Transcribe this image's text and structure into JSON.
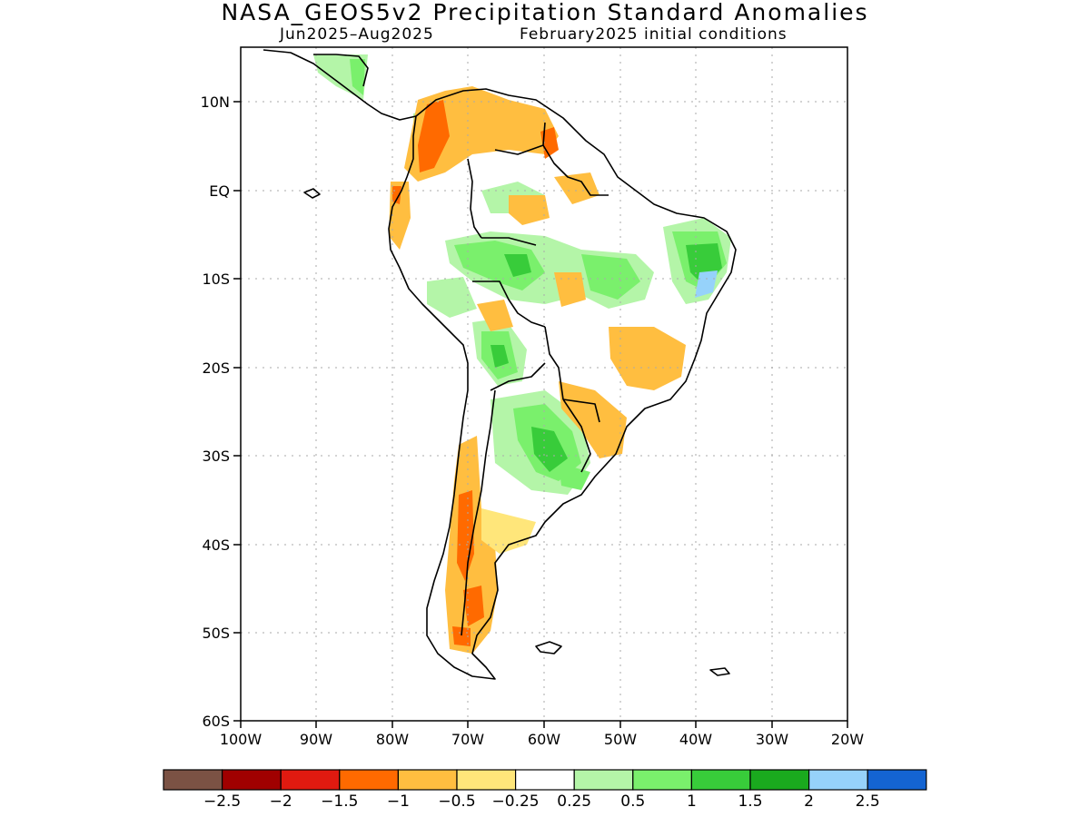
{
  "title": "NASA_GEOS5v2 Precipitation Standard Anomalies",
  "subtitle_left": "Jun2025–Aug2025",
  "subtitle_right": "February2025 initial conditions",
  "map": {
    "lon_ticks": [
      "100W",
      "90W",
      "80W",
      "70W",
      "60W",
      "50W",
      "40W",
      "30W",
      "20W"
    ],
    "lat_ticks": [
      "10N",
      "EQ",
      "10S",
      "20S",
      "30S",
      "40S",
      "50S",
      "60S"
    ]
  },
  "colorbar": {
    "colors": [
      "#7b5244",
      "#a00000",
      "#e01a10",
      "#ff6a00",
      "#ffbe40",
      "#ffe67a",
      "#ffffff",
      "#b4f5a8",
      "#7af06c",
      "#38cc3a",
      "#1aaa1e",
      "#96d2fa",
      "#1464d2"
    ],
    "labels": [
      "−2.5",
      "−2",
      "−1.5",
      "−1",
      "−0.5",
      "−0.25",
      "0.25",
      "0.5",
      "1",
      "1.5",
      "2",
      "2.5"
    ]
  }
}
